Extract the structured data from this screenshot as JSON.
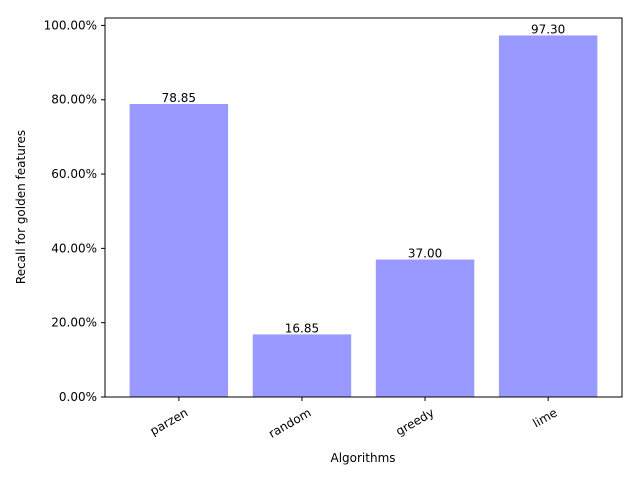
{
  "chart_data": {
    "type": "bar",
    "categories": [
      "parzen",
      "random",
      "greedy",
      "lime"
    ],
    "values": [
      78.85,
      16.85,
      37.0,
      97.3
    ],
    "value_labels": [
      "78.85",
      "16.85",
      "37.00",
      "97.30"
    ],
    "xlabel": "Algorithms",
    "ylabel": "Recall for golden features",
    "ylim": [
      0,
      102
    ],
    "yticks": [
      0,
      20,
      40,
      60,
      80,
      100
    ],
    "ytick_labels": [
      "0.00%",
      "20.00%",
      "40.00%",
      "60.00%",
      "80.00%",
      "100.00%"
    ],
    "bar_color": "#9999ff",
    "grid": false
  }
}
